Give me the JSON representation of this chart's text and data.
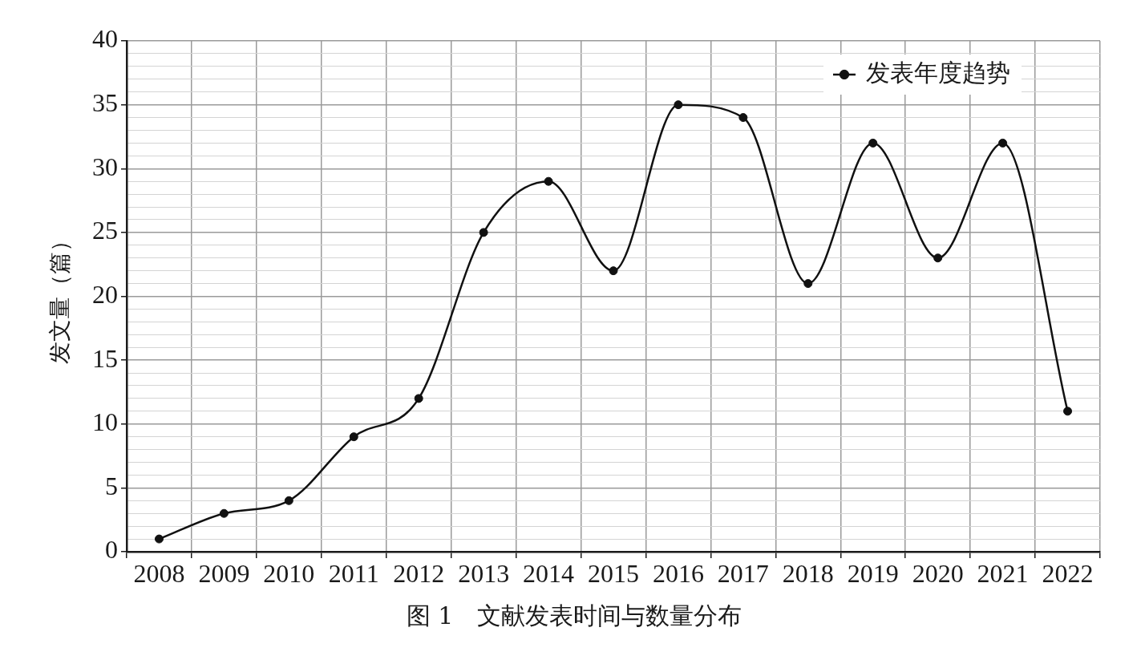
{
  "chart_data": {
    "type": "line",
    "title": "图 1　文献发表时间与数量分布",
    "ylabel": "发文量（篇）",
    "categories": [
      "2008",
      "2009",
      "2010",
      "2011",
      "2012",
      "2013",
      "2014",
      "2015",
      "2016",
      "2017",
      "2018",
      "2019",
      "2020",
      "2021",
      "2022"
    ],
    "series": [
      {
        "name": "发表年度趋势",
        "color": "#111111",
        "values": [
          1,
          3,
          4,
          9,
          12,
          25,
          29,
          22,
          35,
          34,
          21,
          32,
          23,
          32,
          11
        ]
      }
    ],
    "ylim": [
      0,
      40
    ],
    "yticks": [
      0,
      {
        "value": 1,
        "label": null
      },
      {
        "value": 2,
        "label": null
      },
      {
        "value": 3,
        "label": null
      },
      {
        "value": 4,
        "label": null
      },
      5,
      {
        "value": 6,
        "label": null
      },
      {
        "value": 7,
        "label": null
      },
      {
        "value": 8,
        "label": null
      },
      {
        "value": 9,
        "label": null
      },
      10,
      {
        "value": 11,
        "label": null
      },
      {
        "value": 12,
        "label": null
      },
      {
        "value": 13,
        "label": null
      },
      {
        "value": 14,
        "label": null
      },
      15,
      {
        "value": 16,
        "label": null
      },
      {
        "value": 17,
        "label": null
      },
      {
        "value": 18,
        "label": null
      },
      {
        "value": 19,
        "label": null
      },
      20,
      {
        "value": 21,
        "label": null
      },
      {
        "value": 22,
        "label": null
      },
      {
        "value": 23,
        "label": null
      },
      {
        "value": 24,
        "label": null
      },
      25,
      {
        "value": 26,
        "label": null
      },
      {
        "value": 27,
        "label": null
      },
      {
        "value": 28,
        "label": null
      },
      {
        "value": 29,
        "label": null
      },
      30,
      {
        "value": 31,
        "label": null
      },
      {
        "value": 32,
        "label": null
      },
      {
        "value": 33,
        "label": null
      },
      {
        "value": 34,
        "label": null
      },
      35,
      {
        "value": 36,
        "label": null
      },
      {
        "value": 37,
        "label": null
      },
      {
        "value": 38,
        "label": null
      },
      {
        "value": 39,
        "label": null
      },
      40
    ],
    "grid": true,
    "legend": "top right",
    "marker": "circle",
    "line_style": "solid"
  }
}
